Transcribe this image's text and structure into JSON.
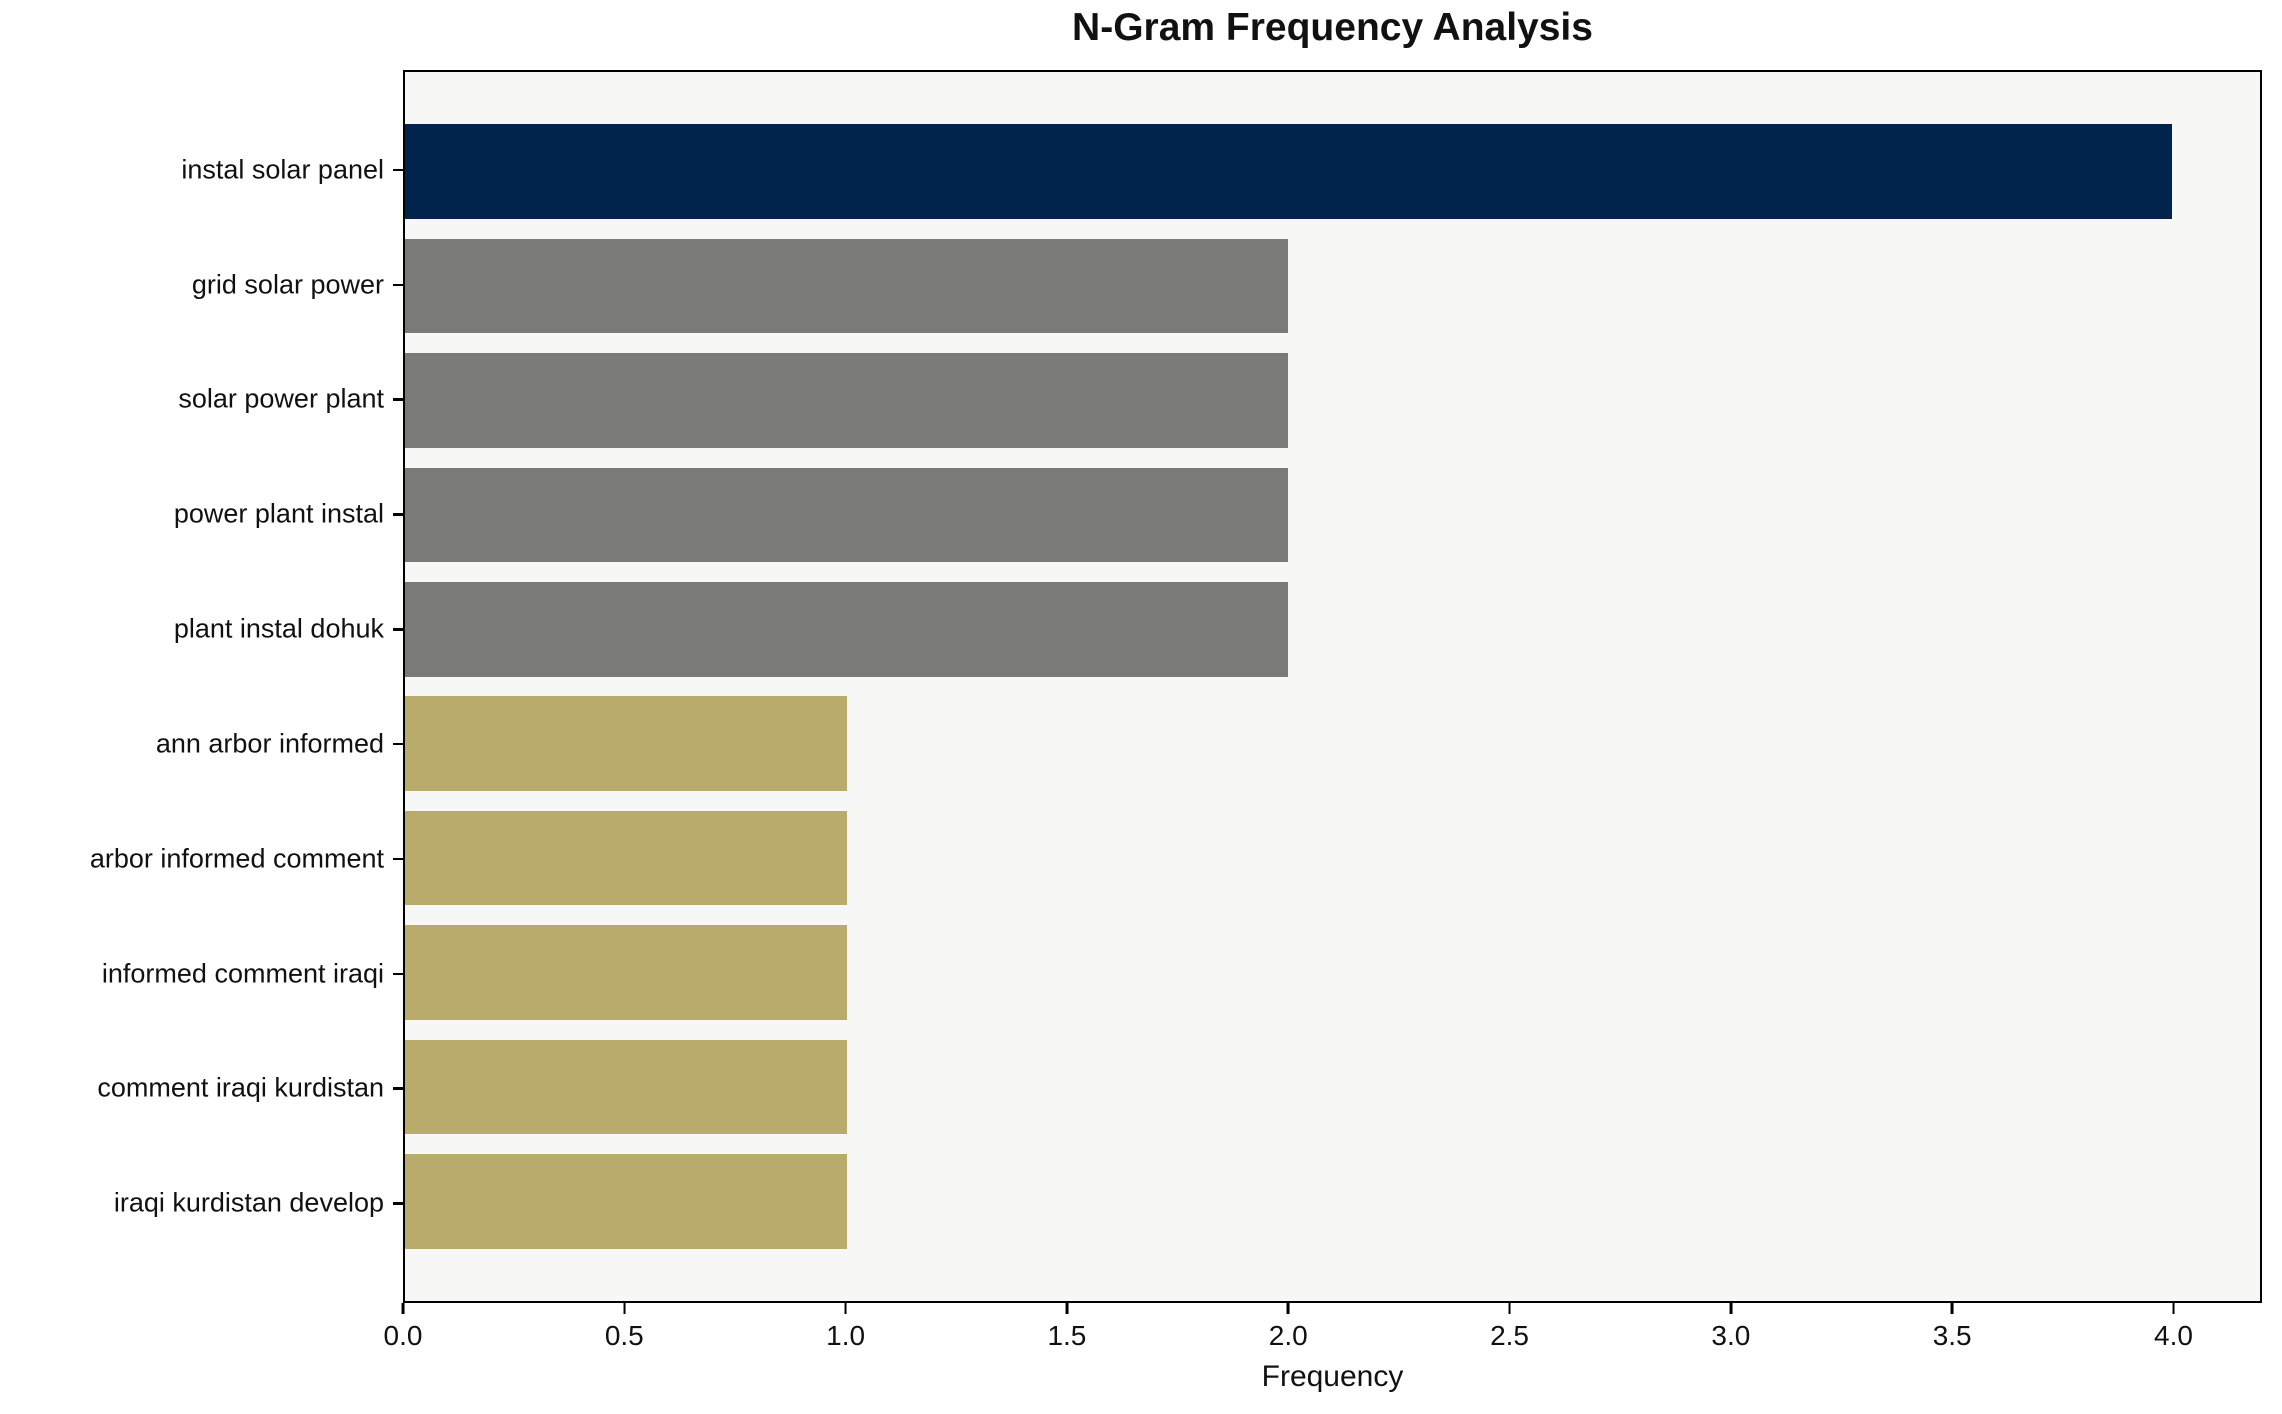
{
  "chart_data": {
    "type": "bar",
    "orientation": "horizontal",
    "title": "N-Gram Frequency Analysis",
    "xlabel": "Frequency",
    "ylabel": "",
    "categories": [
      "instal solar panel",
      "grid solar power",
      "solar power plant",
      "power plant instal",
      "plant instal dohuk",
      "ann arbor informed",
      "arbor informed comment",
      "informed comment iraqi",
      "comment iraqi kurdistan",
      "iraqi kurdistan develop"
    ],
    "values": [
      4,
      2,
      2,
      2,
      2,
      1,
      1,
      1,
      1,
      1
    ],
    "bar_colors": [
      "#02234c",
      "#7a7a76",
      "#7a7a76",
      "#7a7a76",
      "#7a7a76",
      "#b9ab6c",
      "#b9ab6c",
      "#b9ab6c",
      "#b9ab6c",
      "#b9ab6c"
    ],
    "xlim": [
      0,
      4.2
    ],
    "xticks": [
      0.0,
      0.5,
      1.0,
      1.5,
      2.0,
      2.5,
      3.0,
      3.5,
      4.0
    ],
    "xtick_labels": [
      "0.0",
      "0.5",
      "1.0",
      "1.5",
      "2.0",
      "2.5",
      "3.0",
      "3.5",
      "4.0"
    ],
    "grid": false,
    "legend": null,
    "colors": {
      "plot_background": "#f7f7f6",
      "figure_background": "#ffffff",
      "spine": "#000000",
      "text": "#111111",
      "bar_top": "#02234c",
      "bar_mid": "#7a7a76",
      "bar_low": "#b9ab6c"
    }
  }
}
